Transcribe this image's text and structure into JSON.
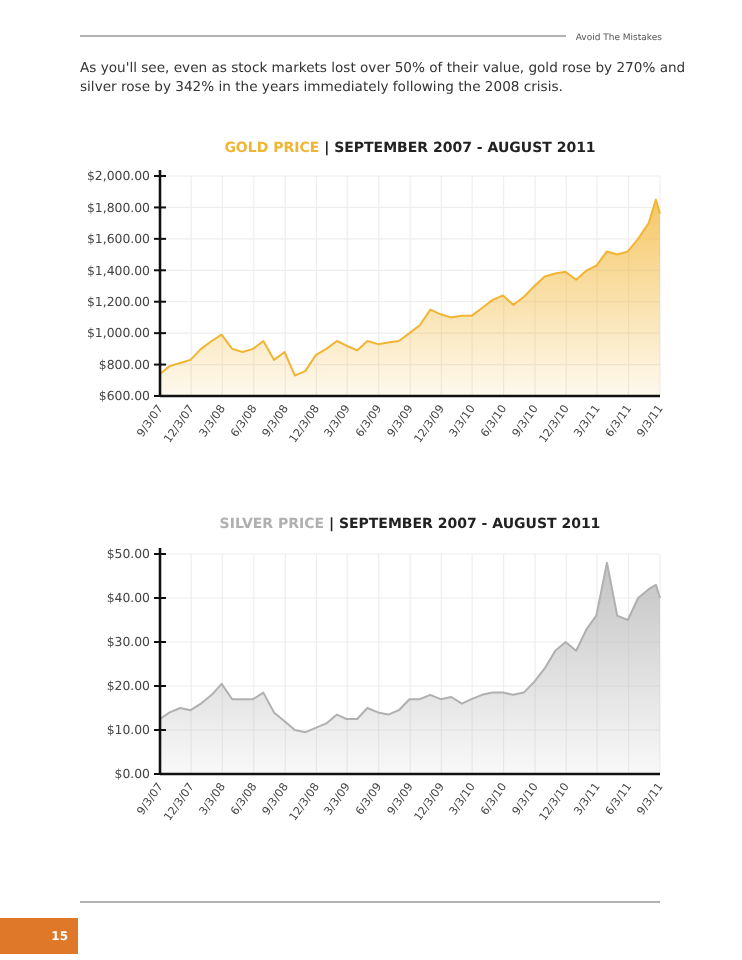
{
  "chart_data": [
    {
      "type": "area",
      "title": "GOLD PRICE | SEPTEMBER 2007 - AUGUST 2011",
      "annotations": [
        "Avoid The Mistakes",
        "As you'll see, even as stock markets lost over 50% of their value, gold rose by 270% and silver rose by 342% in the years immediately following the 2008 crisis."
      ],
      "x": [
        "2007-09-03",
        "2007-10",
        "2007-11",
        "2007-12",
        "2008-01",
        "2008-02",
        "2008-03",
        "2008-04",
        "2008-05",
        "2008-06",
        "2008-07",
        "2008-08",
        "2008-09",
        "2008-10",
        "2008-11",
        "2008-12",
        "2009-01",
        "2009-02",
        "2009-03",
        "2009-04",
        "2009-05",
        "2009-06",
        "2009-07",
        "2009-08",
        "2009-09",
        "2009-10",
        "2009-11",
        "2009-12",
        "2010-01",
        "2010-02",
        "2010-03",
        "2010-04",
        "2010-05",
        "2010-06",
        "2010-07",
        "2010-08",
        "2010-09",
        "2010-10",
        "2010-11",
        "2010-12",
        "2011-01",
        "2011-02",
        "2011-03",
        "2011-04",
        "2011-05",
        "2011-06",
        "2011-07",
        "2011-08",
        "2011-08-22",
        "2011-09-03"
      ],
      "series": [
        {
          "color": "#f2b533",
          "values": [
            740,
            790,
            810,
            830,
            900,
            950,
            990,
            900,
            880,
            900,
            950,
            830,
            880,
            730,
            760,
            860,
            900,
            950,
            920,
            890,
            950,
            930,
            940,
            950,
            1000,
            1050,
            1150,
            1120,
            1100,
            1110,
            1110,
            1160,
            1210,
            1240,
            1180,
            1230,
            1300,
            1360,
            1380,
            1390,
            1340,
            1400,
            1430,
            1520,
            1500,
            1520,
            1600,
            1700,
            1850,
            1760
          ]
        }
      ],
      "xlim": [
        "2007-09-03",
        "2011-09-03"
      ],
      "xticks": [
        {
          "value": "2007-09-03",
          "label": "9/3/07"
        },
        {
          "value": "2007-12-03",
          "label": "12/3/07"
        },
        {
          "value": "2008-03-03",
          "label": "3/3/08"
        },
        {
          "value": "2008-06-03",
          "label": "6/3/08"
        },
        {
          "value": "2008-09-03",
          "label": "9/3/08"
        },
        {
          "value": "2008-12-03",
          "label": "12/3/08"
        },
        {
          "value": "2009-03-03",
          "label": "3/3/09"
        },
        {
          "value": "2009-06-03",
          "label": "6/3/09"
        },
        {
          "value": "2009-09-03",
          "label": "9/3/09"
        },
        {
          "value": "2009-12-03",
          "label": "12/3/09"
        },
        {
          "value": "2010-03-03",
          "label": "3/3/10"
        },
        {
          "value": "2010-06-03",
          "label": "6/3/10"
        },
        {
          "value": "2010-09-03",
          "label": "9/3/10"
        },
        {
          "value": "2010-12-03",
          "label": "12/3/10"
        },
        {
          "value": "2011-03-03",
          "label": "3/3/11"
        },
        {
          "value": "2011-06-03",
          "label": "6/3/11"
        },
        {
          "value": "2011-09-03",
          "label": "9/3/11"
        }
      ],
      "ylim": [
        600,
        2000
      ],
      "yticks": [
        {
          "value": 600,
          "label": "$600.00"
        },
        {
          "value": 800,
          "label": "$800.00"
        },
        {
          "value": 1000,
          "label": "$1,000.00"
        },
        {
          "value": 1200,
          "label": "$1,200.00"
        },
        {
          "value": 1400,
          "label": "$1,400.00"
        },
        {
          "value": 1600,
          "label": "$1,600.00"
        },
        {
          "value": 1800,
          "label": "$1,800.00"
        },
        {
          "value": 2000,
          "label": "$2,000.00"
        }
      ],
      "grid": true
    },
    {
      "type": "area",
      "title": "SILVER PRICE | SEPTEMBER 2007 - AUGUST 2011",
      "annotations": [
        "15"
      ],
      "x": [
        "2007-09-03",
        "2007-10",
        "2007-11",
        "2007-12",
        "2008-01",
        "2008-02",
        "2008-03",
        "2008-04",
        "2008-05",
        "2008-06",
        "2008-07",
        "2008-08",
        "2008-09",
        "2008-10",
        "2008-11",
        "2008-12",
        "2009-01",
        "2009-02",
        "2009-03",
        "2009-04",
        "2009-05",
        "2009-06",
        "2009-07",
        "2009-08",
        "2009-09",
        "2009-10",
        "2009-11",
        "2009-12",
        "2010-01",
        "2010-02",
        "2010-03",
        "2010-04",
        "2010-05",
        "2010-06",
        "2010-07",
        "2010-08",
        "2010-09",
        "2010-10",
        "2010-11",
        "2010-12",
        "2011-01",
        "2011-02",
        "2011-03",
        "2011-04",
        "2011-05",
        "2011-06",
        "2011-07",
        "2011-08",
        "2011-08-22",
        "2011-09-03"
      ],
      "series": [
        {
          "color": "#b0b0b0",
          "values": [
            12.5,
            14,
            15,
            14.5,
            16,
            18,
            20.5,
            17,
            17,
            17,
            18.5,
            14,
            12,
            10,
            9.5,
            10.5,
            11.5,
            13.5,
            12.5,
            12.5,
            15,
            14,
            13.5,
            14.5,
            17,
            17,
            18,
            17,
            17.5,
            16,
            17,
            18,
            18.5,
            18.5,
            18,
            18.5,
            21,
            24,
            28,
            30,
            28,
            33,
            36,
            48,
            36,
            35,
            40,
            42,
            43,
            40
          ]
        }
      ],
      "xlim": [
        "2007-09-03",
        "2011-09-03"
      ],
      "xticks": [
        {
          "value": "2007-09-03",
          "label": "9/3/07"
        },
        {
          "value": "2007-12-03",
          "label": "12/3/07"
        },
        {
          "value": "2008-03-03",
          "label": "3/3/08"
        },
        {
          "value": "2008-06-03",
          "label": "6/3/08"
        },
        {
          "value": "2008-09-03",
          "label": "9/3/08"
        },
        {
          "value": "2008-12-03",
          "label": "12/3/08"
        },
        {
          "value": "2009-03-03",
          "label": "3/3/09"
        },
        {
          "value": "2009-06-03",
          "label": "6/3/09"
        },
        {
          "value": "2009-09-03",
          "label": "9/3/09"
        },
        {
          "value": "2009-12-03",
          "label": "12/3/09"
        },
        {
          "value": "2010-03-03",
          "label": "3/3/10"
        },
        {
          "value": "2010-06-03",
          "label": "6/3/10"
        },
        {
          "value": "2010-09-03",
          "label": "9/3/10"
        },
        {
          "value": "2010-12-03",
          "label": "12/3/10"
        },
        {
          "value": "2011-03-03",
          "label": "3/3/11"
        },
        {
          "value": "2011-06-03",
          "label": "6/3/11"
        },
        {
          "value": "2011-09-03",
          "label": "9/3/11"
        }
      ],
      "ylim": [
        0,
        50
      ],
      "yticks": [
        {
          "value": 0,
          "label": "$0.00"
        },
        {
          "value": 10,
          "label": "$10.00"
        },
        {
          "value": 20,
          "label": "$20.00"
        },
        {
          "value": 30,
          "label": "$30.00"
        },
        {
          "value": 40,
          "label": "$40.00"
        },
        {
          "value": 50,
          "label": "$50.00"
        }
      ],
      "grid": true
    }
  ]
}
